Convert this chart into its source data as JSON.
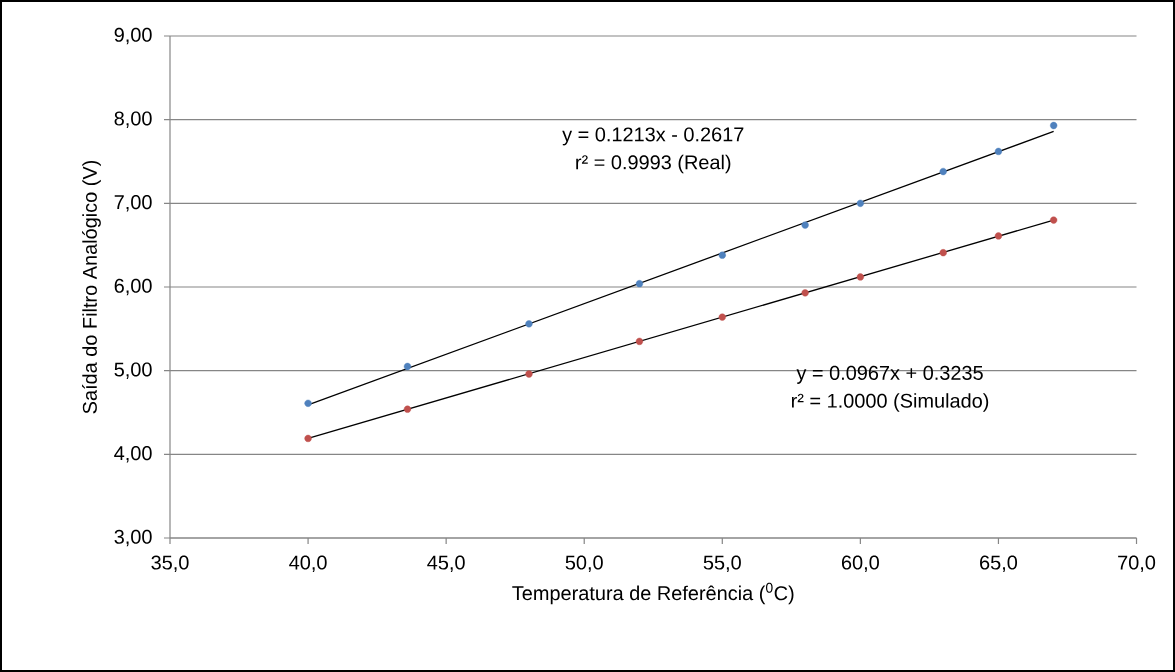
{
  "chart_data": {
    "type": "scatter",
    "xlabel": "Temperatura de Referência ($^{0}$C)",
    "ylabel": "Saída do Filtro Analógico (V)",
    "xlim": [
      35,
      70
    ],
    "ylim": [
      3,
      9
    ],
    "xticks": [
      {
        "value": 35,
        "label": "35,0"
      },
      {
        "value": 40,
        "label": "40,0"
      },
      {
        "value": 45,
        "label": "45,0"
      },
      {
        "value": 50,
        "label": "50,0"
      },
      {
        "value": 55,
        "label": "55,0"
      },
      {
        "value": 60,
        "label": "60,0"
      },
      {
        "value": 65,
        "label": "65,0"
      },
      {
        "value": 70,
        "label": "70,0"
      }
    ],
    "yticks": [
      {
        "value": 3,
        "label": "3,00"
      },
      {
        "value": 4,
        "label": "4,00"
      },
      {
        "value": 5,
        "label": "5,00"
      },
      {
        "value": 6,
        "label": "6,00"
      },
      {
        "value": 7,
        "label": "7,00"
      },
      {
        "value": 8,
        "label": "8,00"
      },
      {
        "value": 9,
        "label": "9,00"
      }
    ],
    "grid": "y",
    "series": [
      {
        "type": "scatter",
        "marker": "circle",
        "color": "#4f81bd",
        "x": [
          40,
          43.6,
          48,
          52,
          55,
          58,
          60,
          63,
          65,
          67
        ],
        "values": [
          4.61,
          5.05,
          5.56,
          6.04,
          6.38,
          6.74,
          7.0,
          7.38,
          7.62,
          7.93
        ]
      },
      {
        "type": "scatter",
        "marker": "circle",
        "color": "#c0504d",
        "x": [
          40,
          43.6,
          48,
          52,
          55,
          58,
          60,
          63,
          65,
          67
        ],
        "values": [
          4.19,
          4.54,
          4.96,
          5.35,
          5.64,
          5.93,
          6.12,
          6.41,
          6.61,
          6.8
        ]
      },
      {
        "type": "line",
        "color": "#000000",
        "marker": "none",
        "x": [
          40,
          67
        ],
        "values": [
          4.59,
          7.86
        ]
      },
      {
        "type": "line",
        "color": "#000000",
        "marker": "none",
        "x": [
          40,
          67
        ],
        "values": [
          4.19,
          6.8
        ]
      }
    ],
    "annotations": [
      "y = 0.1213x - 0.2617",
      "r² = 0.9993 (Real)",
      "y = 0.0967x + 0.3235",
      "r² = 1.0000 (Simulado)"
    ]
  }
}
